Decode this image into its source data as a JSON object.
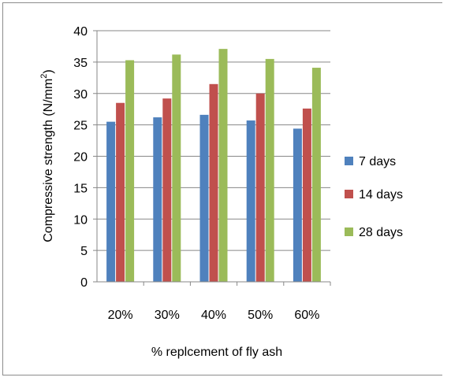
{
  "chart_data": {
    "type": "bar",
    "categories": [
      "20%",
      "30%",
      "40%",
      "50%",
      "60%"
    ],
    "series": [
      {
        "name": "7 days",
        "color": "#4f81bd",
        "values": [
          25.5,
          26.2,
          26.6,
          25.7,
          24.4
        ]
      },
      {
        "name": "14 days",
        "color": "#c0504d",
        "values": [
          28.5,
          29.2,
          31.5,
          30.0,
          27.6
        ]
      },
      {
        "name": "28 days",
        "color": "#9bbb59",
        "values": [
          35.3,
          36.2,
          37.1,
          35.5,
          34.1
        ]
      }
    ],
    "title": "",
    "xlabel": "% replcement of fly ash",
    "ylabel": "Compressive strength (N/mm",
    "ylabel_superscript": "2",
    "ylabel_suffix": ")",
    "ylim": [
      0,
      40
    ],
    "yticks": [
      0,
      5,
      10,
      15,
      20,
      25,
      30,
      35,
      40
    ],
    "grid": true,
    "legend_position": "right"
  }
}
